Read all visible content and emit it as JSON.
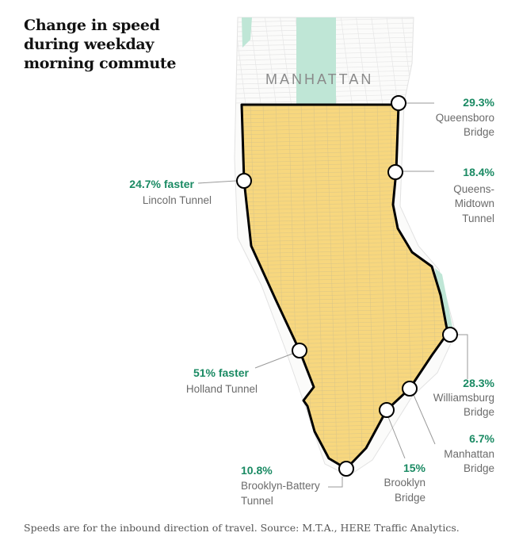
{
  "title": "Change in speed during weekday morning commute",
  "area_label": "MANHATTAN",
  "source": "Speeds are for the inbound direction of travel. Source: M.T.A., HERE Traffic Analytics.",
  "colors": {
    "zone_fill": "#f7d77e",
    "zone_outline": "#000000",
    "park": "#bfe6d6",
    "percent_text": "#1a8a63",
    "label_text": "#6b6b6b",
    "street_lines": "#d9c489",
    "leader": "#9a9a9a"
  },
  "crossings": [
    {
      "pct": "29.3%",
      "name_lines": [
        "Queensboro",
        "Bridge"
      ]
    },
    {
      "pct": "18.4%",
      "name_lines": [
        "Queens-",
        "Midtown",
        "Tunnel"
      ]
    },
    {
      "pct": "24.7% faster",
      "name_lines": [
        "Lincoln Tunnel"
      ]
    },
    {
      "pct": "51% faster",
      "name_lines": [
        "Holland Tunnel"
      ]
    },
    {
      "pct": "28.3%",
      "name_lines": [
        "Williamsburg",
        "Bridge"
      ]
    },
    {
      "pct": "6.7%",
      "name_lines": [
        "Manhattan",
        "Bridge"
      ]
    },
    {
      "pct": "15%",
      "name_lines": [
        "Brooklyn",
        "Bridge"
      ]
    },
    {
      "pct": "10.8%",
      "name_lines": [
        "Brooklyn-Battery",
        "Tunnel"
      ]
    }
  ]
}
